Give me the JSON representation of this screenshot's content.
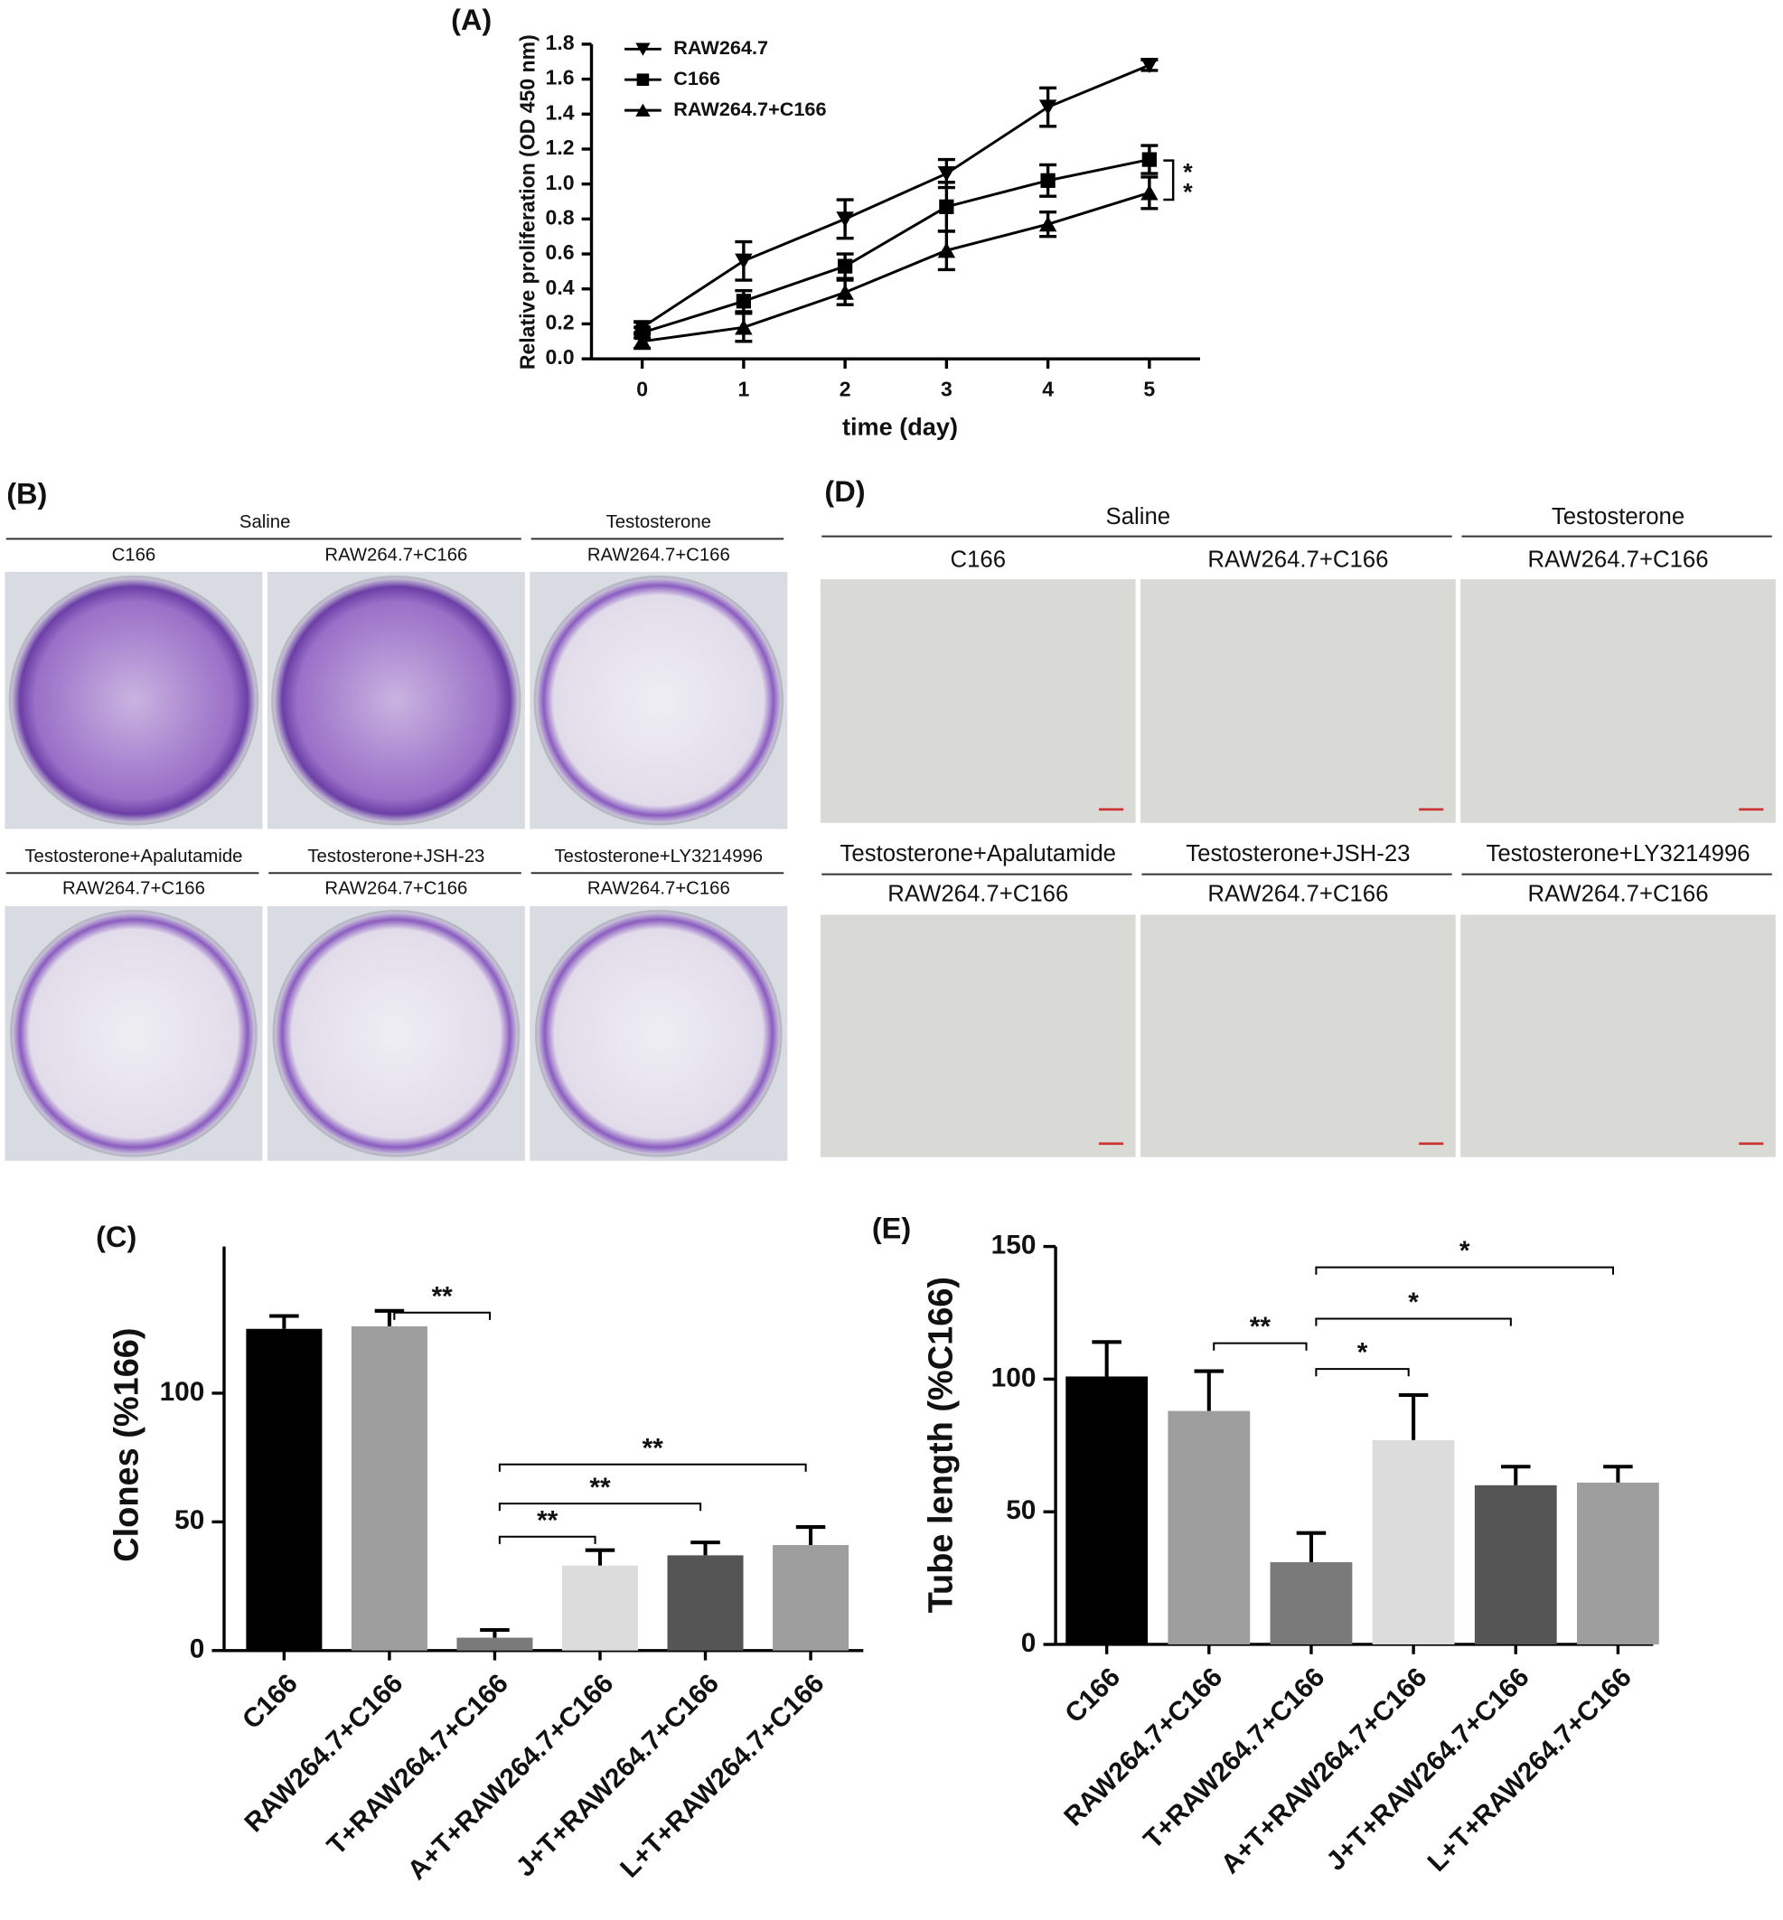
{
  "chart_data": [
    {
      "type": "line",
      "panel_label": "(A)",
      "x_label": "time (day)",
      "y_label": "Relative proliferation (OD 450 nm)",
      "x": [
        0,
        1,
        2,
        3,
        4,
        5
      ],
      "xlim": [
        -0.5,
        5.5
      ],
      "xticks": [
        0,
        1,
        2,
        3,
        4,
        5
      ],
      "ylim": [
        0,
        1.8
      ],
      "yticks": [
        {
          "value": 0,
          "label": "0.0"
        },
        0.2,
        0.4,
        0.6,
        0.8,
        {
          "value": 1,
          "label": "1.0"
        },
        1.2,
        1.4,
        1.6,
        1.8
      ],
      "series": [
        {
          "name": "RAW264.7",
          "color": "#000000",
          "marker": "triangle-down",
          "values": [
            0.18,
            0.56,
            0.8,
            1.06,
            1.44,
            1.68
          ],
          "errors": [
            0.03,
            0.11,
            0.11,
            0.08,
            0.11,
            0.03
          ]
        },
        {
          "name": "C166",
          "color": "#000000",
          "marker": "square",
          "values": [
            0.15,
            0.33,
            0.53,
            0.87,
            1.02,
            1.14
          ],
          "errors": [
            0.03,
            0.06,
            0.07,
            0.14,
            0.09,
            0.08
          ]
        },
        {
          "name": "RAW264.7+C166",
          "color": "#000000",
          "marker": "triangle-up",
          "values": [
            0.1,
            0.18,
            0.38,
            0.62,
            0.77,
            0.95
          ],
          "errors": [
            0.04,
            0.08,
            0.07,
            0.11,
            0.07,
            0.09
          ]
        }
      ],
      "annotations": [
        "*",
        "*"
      ]
    },
    {
      "type": "bar",
      "panel_label": "(C)",
      "y_label": "Clones (%166)",
      "categories": [
        "C166",
        "RAW264.7+C166",
        "T+RAW264.7+C166",
        "A+T+RAW264.7+C166",
        "J+T+RAW264.7+C166",
        "L+T+RAW264.7+C166"
      ],
      "values": [
        125,
        126,
        5,
        33,
        37,
        41
      ],
      "errors": [
        5,
        6,
        3,
        6,
        5,
        7
      ],
      "colors": [
        "#000000",
        "#9e9e9e",
        "#7a7a7a",
        "#dcdcdc",
        "#555555",
        "#9e9e9e"
      ],
      "ylim": [
        0,
        157
      ],
      "yticks": [
        0,
        50,
        100
      ],
      "annotations": [
        "**",
        "**",
        "**",
        "**"
      ]
    },
    {
      "type": "bar",
      "panel_label": "(E)",
      "y_label": "Tube length (%C166)",
      "categories": [
        "C166",
        "RAW264.7+C166",
        "T+RAW264.7+C166",
        "A+T+RAW264.7+C166",
        "J+T+RAW264.7+C166",
        "L+T+RAW264.7+C166"
      ],
      "values": [
        101,
        88,
        31,
        77,
        60,
        61
      ],
      "errors": [
        13,
        15,
        11,
        17,
        7,
        6
      ],
      "colors": [
        "#000000",
        "#9e9e9e",
        "#7a7a7a",
        "#dcdcdc",
        "#555555",
        "#9e9e9e"
      ],
      "ylim": [
        0,
        150
      ],
      "yticks": [
        0,
        50,
        100,
        150
      ],
      "annotations": [
        "**",
        "*",
        "*",
        "*"
      ]
    }
  ],
  "image_panels": [
    {
      "panel_label": "(B)",
      "rows": [
        {
          "groups": [
            {
              "treatment": "Saline",
              "cells": [
                "C166",
                "RAW264.7+C166"
              ]
            },
            {
              "treatment": "Testosterone",
              "cells": [
                "RAW264.7+C166"
              ]
            }
          ]
        },
        {
          "groups": [
            {
              "treatment": "Testosterone+Apalutamide",
              "cells": [
                "RAW264.7+C166"
              ]
            },
            {
              "treatment": "Testosterone+JSH-23",
              "cells": [
                "RAW264.7+C166"
              ]
            },
            {
              "treatment": "Testosterone+LY3214996",
              "cells": [
                "RAW264.7+C166"
              ]
            }
          ]
        }
      ]
    },
    {
      "panel_label": "(D)",
      "rows": [
        {
          "groups": [
            {
              "treatment": "Saline",
              "cells": [
                "C166",
                "RAW264.7+C166"
              ]
            },
            {
              "treatment": "Testosterone",
              "cells": [
                "RAW264.7+C166"
              ]
            }
          ]
        },
        {
          "groups": [
            {
              "treatment": "Testosterone+Apalutamide",
              "cells": [
                "RAW264.7+C166"
              ]
            },
            {
              "treatment": "Testosterone+JSH-23",
              "cells": [
                "RAW264.7+C166"
              ]
            },
            {
              "treatment": "Testosterone+LY3214996",
              "cells": [
                "RAW264.7+C166"
              ]
            }
          ]
        }
      ]
    }
  ]
}
